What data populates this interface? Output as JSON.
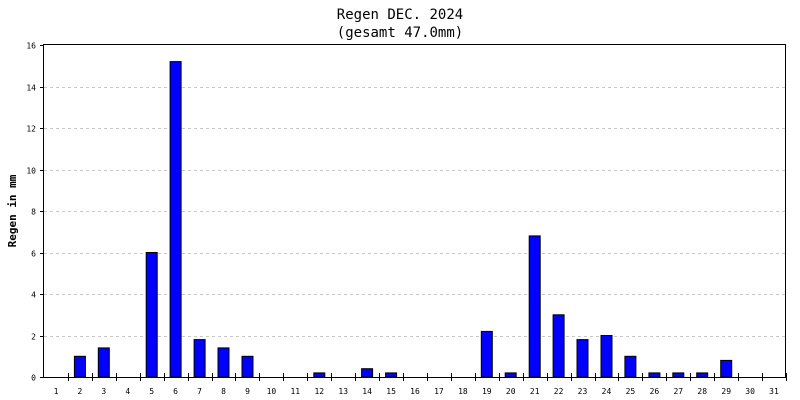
{
  "chart_data": {
    "type": "bar",
    "title": "Regen DEC. 2024",
    "subtitle": "(gesamt 47.0mm)",
    "xlabel": "",
    "ylabel": "Regen in mm",
    "ylim": [
      0,
      16
    ],
    "yticks": [
      0,
      2,
      4,
      6,
      8,
      10,
      12,
      14,
      16
    ],
    "grid": true,
    "legend": "none",
    "bar_color": "#0000ff",
    "categories": [
      "1",
      "2",
      "3",
      "4",
      "5",
      "6",
      "7",
      "8",
      "9",
      "10",
      "11",
      "12",
      "13",
      "14",
      "15",
      "16",
      "17",
      "18",
      "19",
      "20",
      "21",
      "22",
      "23",
      "24",
      "25",
      "26",
      "27",
      "28",
      "29",
      "30",
      "31"
    ],
    "values": [
      0,
      1.0,
      1.4,
      0,
      6.0,
      15.2,
      1.8,
      1.4,
      1.0,
      0,
      0,
      0.2,
      0,
      0.4,
      0.2,
      0,
      0,
      0,
      2.2,
      0.2,
      6.8,
      3.0,
      1.8,
      2.0,
      1.0,
      0.2,
      0.2,
      0.2,
      0.8,
      0,
      0
    ]
  }
}
